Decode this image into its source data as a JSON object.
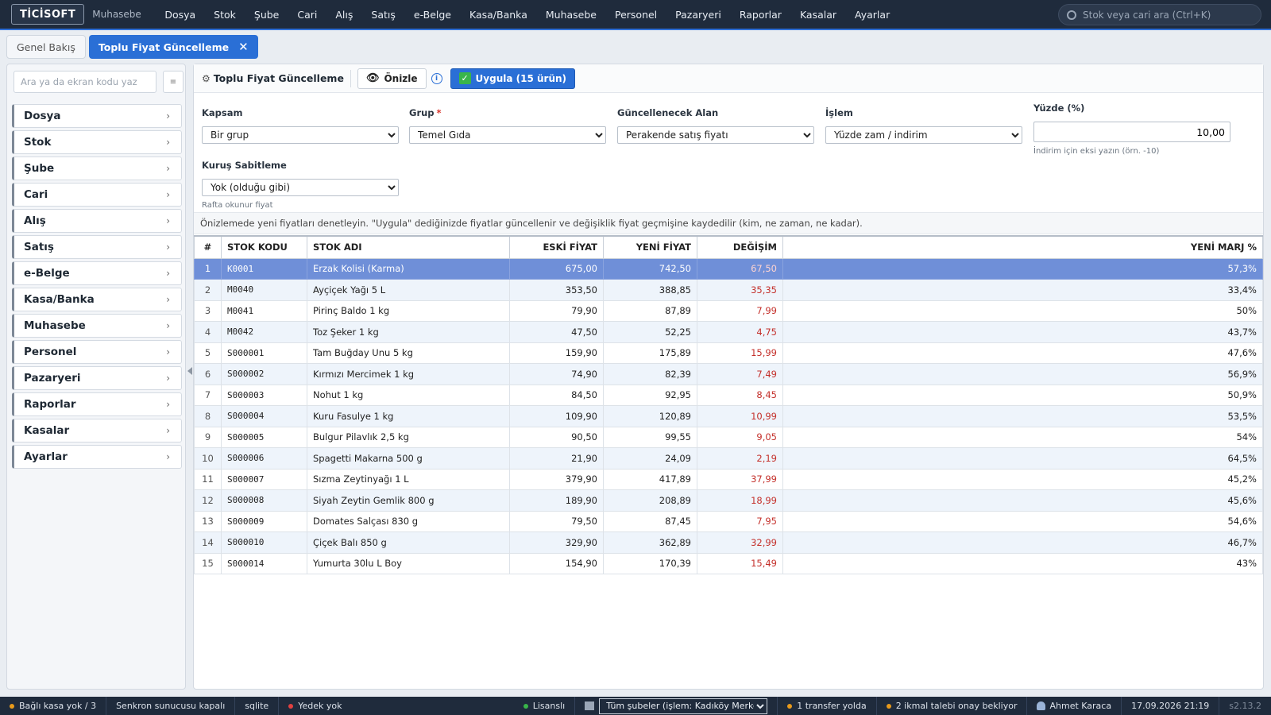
{
  "topbar": {
    "logo": "TİCİSOFT",
    "module": "Muhasebe",
    "nav": [
      "Dosya",
      "Stok",
      "Şube",
      "Cari",
      "Alış",
      "Satış",
      "e-Belge",
      "Kasa/Banka",
      "Muhasebe",
      "Personel",
      "Pazaryeri",
      "Raporlar",
      "Kasalar",
      "Ayarlar"
    ],
    "search_placeholder": "Stok veya cari ara (Ctrl+K)"
  },
  "tabs": {
    "overview": "Genel Bakış",
    "active": "Toplu Fiyat Güncelleme",
    "close": "✕"
  },
  "sidebar": {
    "search_placeholder": "Ara ya da ekran kodu yaz",
    "button_glyph": "≡",
    "items": [
      "Dosya",
      "Stok",
      "Şube",
      "Cari",
      "Alış",
      "Satış",
      "e-Belge",
      "Kasa/Banka",
      "Muhasebe",
      "Personel",
      "Pazaryeri",
      "Raporlar",
      "Kasalar",
      "Ayarlar"
    ]
  },
  "toolbar": {
    "title": "Toplu Fiyat Güncelleme",
    "preview_label": "Önizle",
    "info_glyph": "i",
    "apply_label": "Uygula (15 ürün)"
  },
  "form": {
    "scope": {
      "label": "Kapsam",
      "value": "Bir grup"
    },
    "group": {
      "label": "Grup",
      "required": "*",
      "value": "Temel Gıda"
    },
    "field": {
      "label": "Güncellenecek Alan",
      "value": "Perakende satış fiyatı"
    },
    "operation": {
      "label": "İşlem",
      "value": "Yüzde zam / indirim"
    },
    "percent": {
      "label": "Yüzde (%)",
      "value": "10,00",
      "hint": "İndirim için eksi yazın (örn. -10)"
    },
    "rounding": {
      "label": "Kuruş Sabitleme",
      "value": "Yok (olduğu gibi)",
      "hint": "Rafta okunur fiyat"
    }
  },
  "info_text": "Önizlemede yeni fiyatları denetleyin. \"Uygula\" dediğinizde fiyatlar güncellenir ve değişiklik fiyat geçmişine kaydedilir (kim, ne zaman, ne kadar).",
  "table": {
    "columns": [
      "#",
      "STOK KODU",
      "STOK ADI",
      "ESKİ FİYAT",
      "YENİ FİYAT",
      "DEĞİŞİM",
      "YENİ MARJ %"
    ],
    "selected_row": 0,
    "rows": [
      [
        "1",
        "K0001",
        "Erzak Kolisi (Karma)",
        "675,00",
        "742,50",
        "67,50",
        "57,3%"
      ],
      [
        "2",
        "M0040",
        "Ayçiçek Yağı 5 L",
        "353,50",
        "388,85",
        "35,35",
        "33,4%"
      ],
      [
        "3",
        "M0041",
        "Pirinç Baldo 1 kg",
        "79,90",
        "87,89",
        "7,99",
        "50%"
      ],
      [
        "4",
        "M0042",
        "Toz Şeker 1 kg",
        "47,50",
        "52,25",
        "4,75",
        "43,7%"
      ],
      [
        "5",
        "S000001",
        "Tam Buğday Unu 5 kg",
        "159,90",
        "175,89",
        "15,99",
        "47,6%"
      ],
      [
        "6",
        "S000002",
        "Kırmızı Mercimek 1 kg",
        "74,90",
        "82,39",
        "7,49",
        "56,9%"
      ],
      [
        "7",
        "S000003",
        "Nohut 1 kg",
        "84,50",
        "92,95",
        "8,45",
        "50,9%"
      ],
      [
        "8",
        "S000004",
        "Kuru Fasulye 1 kg",
        "109,90",
        "120,89",
        "10,99",
        "53,5%"
      ],
      [
        "9",
        "S000005",
        "Bulgur Pilavlık 2,5 kg",
        "90,50",
        "99,55",
        "9,05",
        "54%"
      ],
      [
        "10",
        "S000006",
        "Spagetti Makarna 500 g",
        "21,90",
        "24,09",
        "2,19",
        "64,5%"
      ],
      [
        "11",
        "S000007",
        "Sızma Zeytinyağı 1 L",
        "379,90",
        "417,89",
        "37,99",
        "45,2%"
      ],
      [
        "12",
        "S000008",
        "Siyah Zeytin Gemlik 800 g",
        "189,90",
        "208,89",
        "18,99",
        "45,6%"
      ],
      [
        "13",
        "S000009",
        "Domates Salçası 830 g",
        "79,50",
        "87,45",
        "7,95",
        "54,6%"
      ],
      [
        "14",
        "S000010",
        "Çiçek Balı 850 g",
        "329,90",
        "362,89",
        "32,99",
        "46,7%"
      ],
      [
        "15",
        "S000014",
        "Yumurta 30lu L Boy",
        "154,90",
        "170,39",
        "15,49",
        "43%"
      ]
    ]
  },
  "statusbar": {
    "cash": "Bağlı kasa yok / 3",
    "sync": "Senkron sunucusu kapalı",
    "db": "sqlite",
    "backup": "Yedek yok",
    "license": "Lisanslı",
    "branch": "Tüm şubeler (işlem: Kadıköy Merkez)",
    "transfer": "1 transfer yolda",
    "requests": "2 ikmal talebi onay bekliyor",
    "user": "Ahmet Karaca",
    "datetime": "17.09.2026 21:19",
    "version": "s2.13.2"
  },
  "colors": {
    "accent": "#2a6fd6",
    "topbar": "#1f2b3c",
    "change_red": "#c4302b",
    "ok_green": "#39b54a",
    "warn_orange": "#e89a1b",
    "error_red": "#e04040"
  }
}
